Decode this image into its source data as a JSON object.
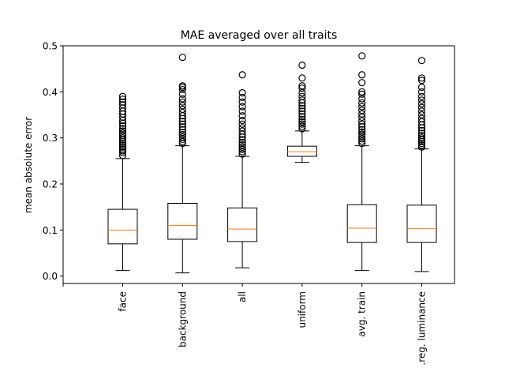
{
  "chart_data": {
    "type": "box",
    "title": "MAE averaged over all traits",
    "xlabel": "",
    "ylabel": "mean absolute error",
    "ylim": [
      -0.016,
      0.5
    ],
    "yticks": [
      0.0,
      0.1,
      0.2,
      0.3,
      0.4,
      0.5
    ],
    "ytick_labels": [
      "0.0",
      "0.1",
      "0.2",
      "0.3",
      "0.4",
      "0.5"
    ],
    "grid": false,
    "median_color": "#ff7f0e",
    "box_color": "#000000",
    "categories": [
      "face",
      "background",
      "all",
      "uniform",
      "avg. train",
      ".reg. luminance"
    ],
    "boxes": [
      {
        "label": "face",
        "whisker_low": 0.012,
        "q1": 0.07,
        "median": 0.1,
        "q3": 0.145,
        "whisker_high": 0.255,
        "fliers": [
          0.262,
          0.268,
          0.272,
          0.276,
          0.28,
          0.284,
          0.288,
          0.292,
          0.296,
          0.3,
          0.305,
          0.31,
          0.315,
          0.32,
          0.326,
          0.332,
          0.338,
          0.345,
          0.352,
          0.358,
          0.365,
          0.372,
          0.378,
          0.384,
          0.39
        ]
      },
      {
        "label": "background",
        "whisker_low": 0.007,
        "q1": 0.08,
        "median": 0.11,
        "q3": 0.158,
        "whisker_high": 0.283,
        "fliers": [
          0.288,
          0.292,
          0.297,
          0.302,
          0.307,
          0.312,
          0.318,
          0.324,
          0.33,
          0.336,
          0.342,
          0.348,
          0.355,
          0.362,
          0.37,
          0.378,
          0.385,
          0.395,
          0.405,
          0.41,
          0.413,
          0.475
        ]
      },
      {
        "label": "all",
        "whisker_low": 0.018,
        "q1": 0.075,
        "median": 0.102,
        "q3": 0.148,
        "whisker_high": 0.26,
        "fliers": [
          0.265,
          0.27,
          0.275,
          0.28,
          0.285,
          0.29,
          0.296,
          0.302,
          0.308,
          0.315,
          0.322,
          0.33,
          0.338,
          0.348,
          0.358,
          0.368,
          0.378,
          0.388,
          0.398,
          0.437
        ]
      },
      {
        "label": "uniform",
        "whisker_low": 0.247,
        "q1": 0.26,
        "median": 0.27,
        "q3": 0.282,
        "whisker_high": 0.315,
        "fliers": [
          0.32,
          0.325,
          0.33,
          0.335,
          0.34,
          0.346,
          0.352,
          0.358,
          0.364,
          0.37,
          0.376,
          0.382,
          0.39,
          0.398,
          0.408,
          0.413,
          0.43,
          0.458
        ]
      },
      {
        "label": "avg. train",
        "whisker_low": 0.012,
        "q1": 0.073,
        "median": 0.104,
        "q3": 0.155,
        "whisker_high": 0.283,
        "fliers": [
          0.288,
          0.293,
          0.298,
          0.303,
          0.308,
          0.313,
          0.318,
          0.324,
          0.33,
          0.337,
          0.345,
          0.352,
          0.36,
          0.368,
          0.376,
          0.385,
          0.395,
          0.4,
          0.42,
          0.437,
          0.478
        ]
      },
      {
        "label": ".reg. luminance",
        "whisker_low": 0.01,
        "q1": 0.073,
        "median": 0.103,
        "q3": 0.154,
        "whisker_high": 0.276,
        "fliers": [
          0.28,
          0.284,
          0.288,
          0.292,
          0.296,
          0.3,
          0.305,
          0.31,
          0.316,
          0.322,
          0.328,
          0.335,
          0.342,
          0.35,
          0.358,
          0.366,
          0.374,
          0.382,
          0.39,
          0.4,
          0.41,
          0.425,
          0.43,
          0.468
        ]
      }
    ]
  }
}
